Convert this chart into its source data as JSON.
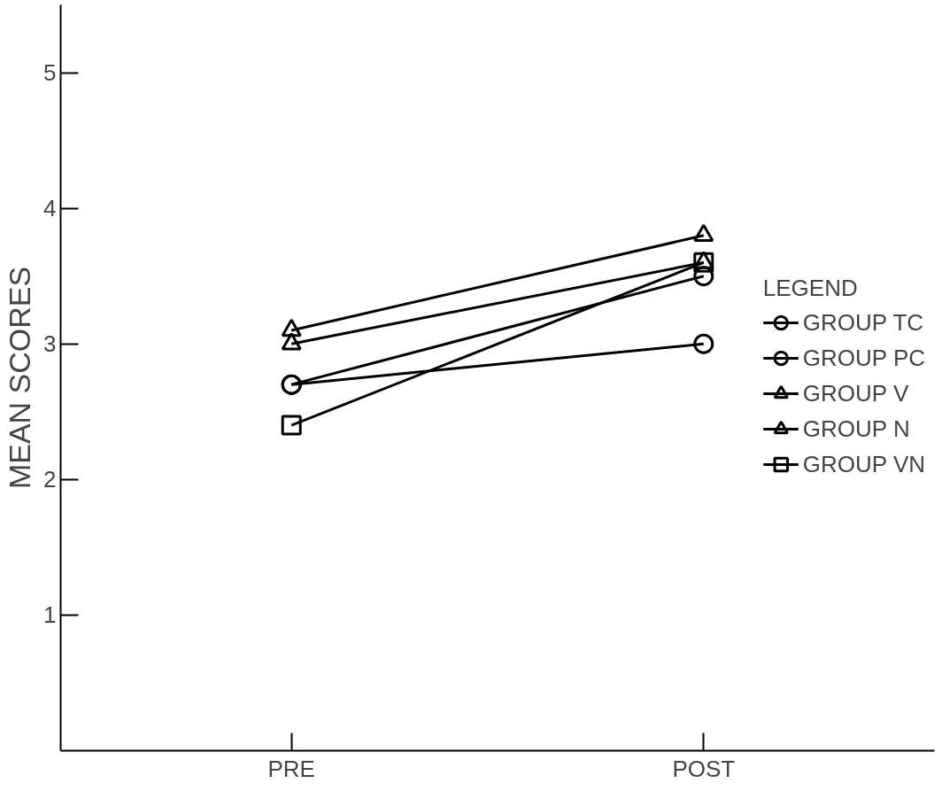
{
  "chart_data": {
    "type": "line",
    "ylabel": "MEAN SCORES",
    "legend_title": "LEGEND",
    "categories": [
      "PRE",
      "POST"
    ],
    "series": [
      {
        "name": "GROUP TC",
        "color": "#000000",
        "marker": "circle",
        "values": [
          2.7,
          3.0
        ]
      },
      {
        "name": "GROUP PC",
        "color": "#000000",
        "marker": "circle",
        "values": [
          2.7,
          3.5
        ]
      },
      {
        "name": "GROUP V",
        "color": "#000000",
        "marker": "triangle",
        "values": [
          3.0,
          3.6
        ]
      },
      {
        "name": "GROUP N",
        "color": "#000000",
        "marker": "triangle",
        "values": [
          3.1,
          3.8
        ]
      },
      {
        "name": "GROUP VN",
        "color": "#000000",
        "marker": "square",
        "values": [
          2.4,
          3.6
        ]
      }
    ],
    "ylim": [
      0,
      5.5
    ],
    "yticks": [
      1,
      2,
      3,
      4,
      5
    ],
    "grid": false,
    "legend": "right",
    "line_style": "solid"
  }
}
